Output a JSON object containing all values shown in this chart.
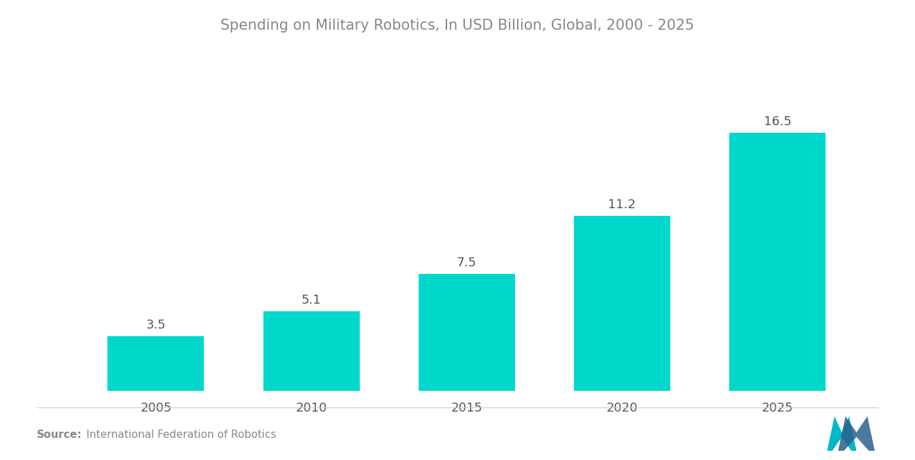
{
  "title": "Spending on Military Robotics, In USD Billion, Global, 2000 - 2025",
  "categories": [
    "2005",
    "2010",
    "2015",
    "2020",
    "2025"
  ],
  "values": [
    3.5,
    5.1,
    7.5,
    11.2,
    16.5
  ],
  "bar_color": "#00D8CC",
  "label_color": "#555555",
  "title_color": "#888888",
  "background_color": "#ffffff",
  "source_bold": "Source:",
  "source_rest": "   International Federation of Robotics",
  "bar_width": 0.62,
  "label_fontsize": 13,
  "tick_fontsize": 13,
  "title_fontsize": 15,
  "source_fontsize": 11,
  "ylim_max": 20,
  "xlim_left": -0.65,
  "xlim_right": 4.65
}
